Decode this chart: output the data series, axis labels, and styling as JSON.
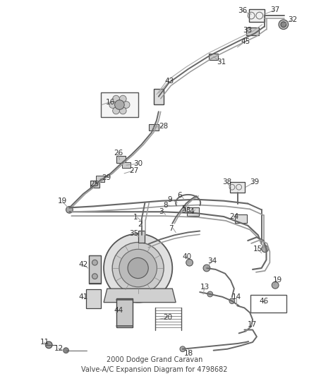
{
  "title": "2000 Dodge Grand Caravan\nValve-A/C Expansion Diagram for 4798682",
  "bg_color": "#ffffff",
  "line_color": "#555555",
  "label_color": "#333333",
  "label_fontsize": 7.5,
  "title_fontsize": 7,
  "fig_width": 4.38,
  "fig_height": 5.33,
  "dpi": 100,
  "pipe_color1": "#666666",
  "pipe_color2": "#999999"
}
